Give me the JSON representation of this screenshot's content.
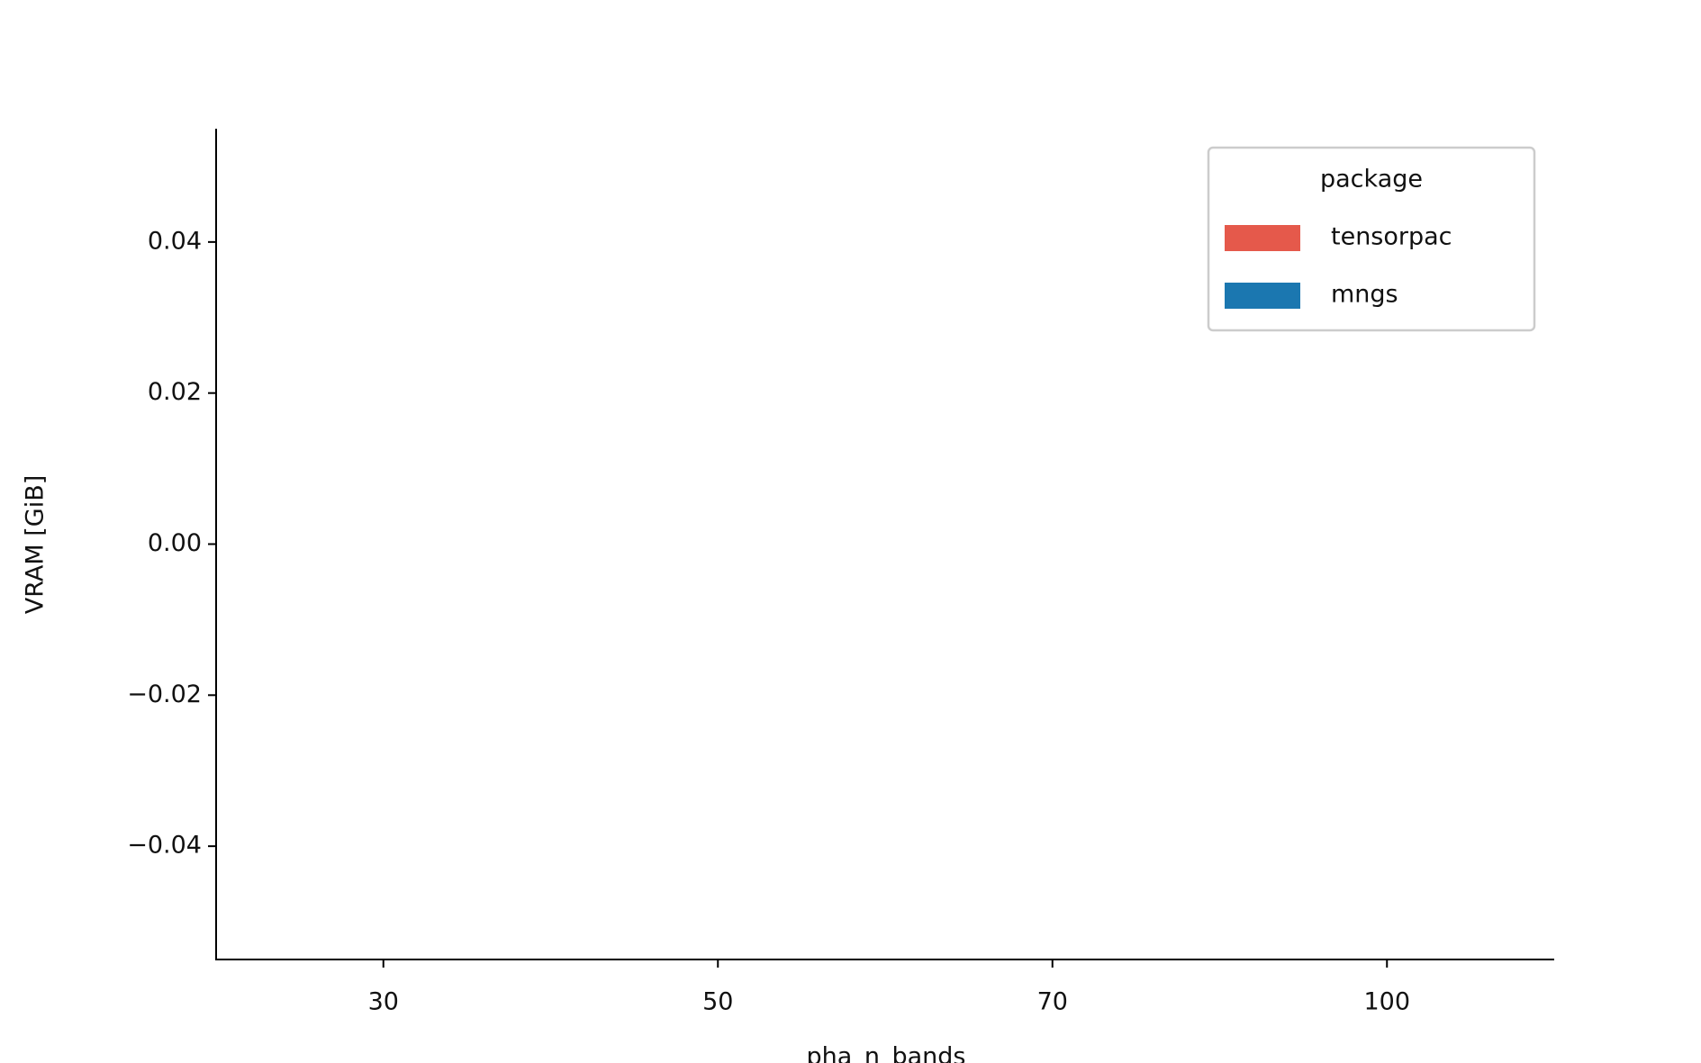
{
  "chart_data": {
    "type": "bar",
    "xlabel": "pha_n_bands",
    "ylabel": "VRAM [GiB]",
    "categories": [
      "30",
      "50",
      "70",
      "100"
    ],
    "series": [
      {
        "name": "tensorpac",
        "color": "#e5594b",
        "values": [
          0,
          0,
          0,
          0
        ]
      },
      {
        "name": "mngs",
        "color": "#1b77b0",
        "values": [
          0,
          0,
          0,
          0
        ]
      }
    ],
    "ylim": [
      -0.055,
      0.055
    ],
    "yticks": [
      {
        "value": -0.04,
        "label": "−0.04"
      },
      {
        "value": -0.02,
        "label": "−0.02"
      },
      {
        "value": 0,
        "label": "0.00"
      },
      0.02,
      0.04
    ],
    "legend": {
      "title": "package",
      "position": "upper right"
    },
    "grid": false
  }
}
